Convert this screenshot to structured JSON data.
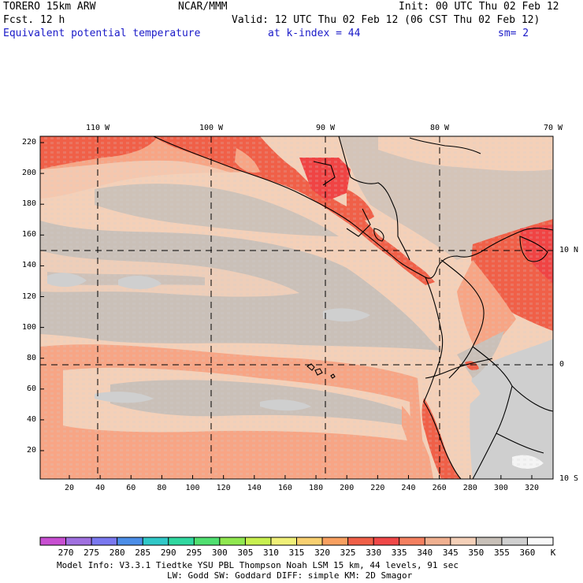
{
  "header": {
    "model": "TORERO  15km ARW",
    "center": "NCAR/MMM",
    "init": "Init: 00 UTC Thu 02 Feb 12",
    "fcst": "Fcst.   12 h",
    "valid": "Valid: 12 UTC Thu 02 Feb 12 (06 CST Thu 02 Feb 12)",
    "field": "Equivalent potential temperature",
    "level": "at k-index =  44",
    "smooth": "sm= 2"
  },
  "axes": {
    "y_ticks": [
      "220",
      "200",
      "180",
      "160",
      "140",
      "120",
      "100",
      "80",
      "60",
      "40",
      "20"
    ],
    "x_ticks": [
      "20",
      "40",
      "60",
      "80",
      "100",
      "120",
      "140",
      "160",
      "180",
      "200",
      "220",
      "240",
      "260",
      "280",
      "300",
      "320"
    ],
    "lon_labels": [
      "110 W",
      "100 W",
      "90 W",
      "80 W",
      "70 W"
    ],
    "lat_labels": [
      "10 N",
      "0",
      "10 S"
    ]
  },
  "colorbar": {
    "labels": [
      "270",
      "275",
      "280",
      "285",
      "290",
      "295",
      "300",
      "305",
      "310",
      "315",
      "320",
      "325",
      "330",
      "335",
      "340",
      "345",
      "350",
      "355",
      "360"
    ],
    "unit": "K",
    "colors": [
      "#c84fd2",
      "#a070e0",
      "#7a78f0",
      "#4c8ee8",
      "#30c8c8",
      "#30d8a0",
      "#50e070",
      "#90e850",
      "#c8f050",
      "#f0f078",
      "#f8d070",
      "#f8a060",
      "#f06048",
      "#f04848",
      "#f48060",
      "#f0b090",
      "#f4d0b8",
      "#c8c0b8",
      "#d0d0d0",
      "#f8f8f8"
    ]
  },
  "map_colors": {
    "ocean_base": "#f4d0b8",
    "cool_band": "#cac0b8",
    "grey_pockets": "#cfcfcf",
    "warm": "#f7a585",
    "hot": "#f06048",
    "hotter": "#f04444"
  },
  "footer": {
    "line1": "Model Info: V3.3.1    Tiedtke YSU PBL  Thompson     Noah LSM  15 km,   44 levels,   91 sec",
    "line2": "LW: Godd SW: Goddard DIFF: simple KM: 2D Smagor"
  }
}
